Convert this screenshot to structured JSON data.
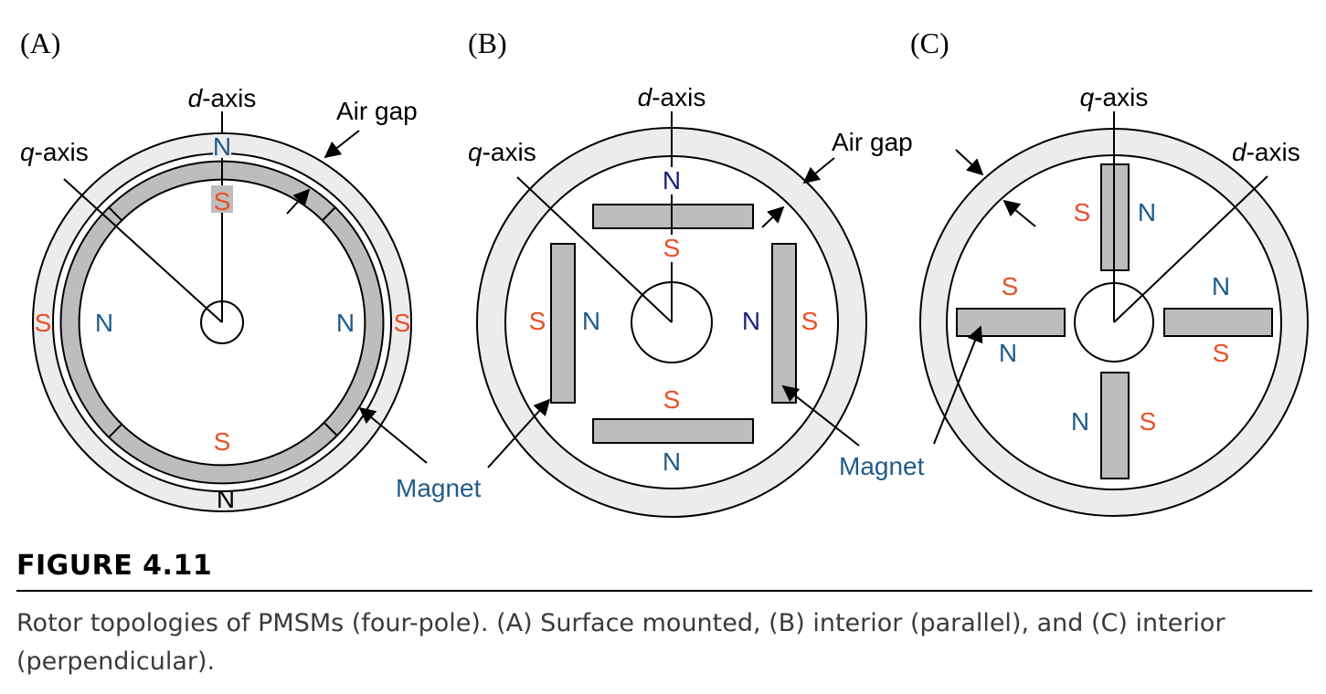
{
  "colors": {
    "stator_ring": "#ececec",
    "magnet": "#bdbdbd",
    "outline": "#000000",
    "north": "#1f5c8a",
    "north_interior": "#1a237e",
    "south": "#e8502a",
    "magnet_label": "#1f5c8a"
  },
  "panels": {
    "a": {
      "label": "(A)",
      "d_axis": "d",
      "q_axis": "q",
      "axis_suffix": "-axis",
      "air_gap": "Air gap",
      "poles": {
        "top_out": "N",
        "top_in": "S",
        "left_out": "S",
        "left_in": "N",
        "right_in": "N",
        "right_out": "S",
        "bottom_in": "S",
        "bottom_out": "N"
      }
    },
    "b": {
      "label": "(B)",
      "d_axis": "d",
      "q_axis": "q",
      "axis_suffix": "-axis",
      "air_gap": "Air gap",
      "magnet_left": "Magnet",
      "magnet_right": "Magnet",
      "poles": {
        "top_n": "N",
        "top_s": "S",
        "left_s": "S",
        "left_n": "N",
        "right_n": "N",
        "right_s": "S",
        "bottom_s": "S",
        "bottom_n": "N"
      }
    },
    "c": {
      "label": "(C)",
      "d_axis": "d",
      "q_axis": "q",
      "axis_suffix": "-axis",
      "poles": {
        "top_s": "S",
        "top_n": "N",
        "left_s": "S",
        "left_n": "N",
        "right_n": "N",
        "right_s": "S",
        "bottom_n": "N",
        "bottom_s": "S"
      }
    }
  },
  "figure": {
    "number": "FIGURE 4.11",
    "caption": "Rotor topologies of PMSMs (four-pole). (A) Surface mounted, (B) interior (parallel), and (C) interior (perpendicular)."
  }
}
